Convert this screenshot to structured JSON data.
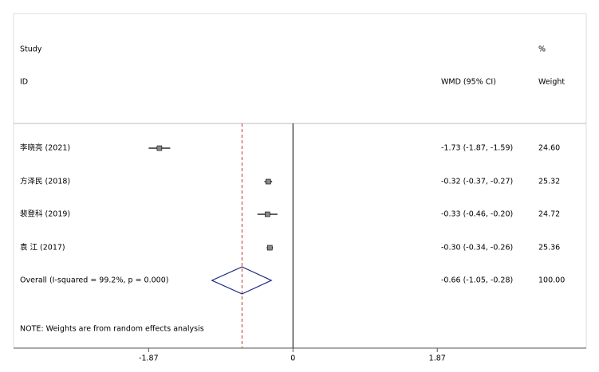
{
  "chart_data": {
    "type": "forest",
    "headers": {
      "study": "Study",
      "id": "ID",
      "effect": "WMD (95% CI)",
      "percent": "%",
      "weight": "Weight"
    },
    "studies": {
      "names": [
        "李晓亮 (2021)",
        "方泽民 (2018)",
        "裴登科 (2019)",
        "袁 江 (2017)"
      ],
      "values": [
        -1.73,
        -0.32,
        -0.33,
        -0.3
      ],
      "lower": [
        -1.87,
        -0.37,
        -0.46,
        -0.34
      ],
      "upper": [
        -1.59,
        -0.27,
        -0.2,
        -0.26
      ],
      "value_labels": [
        "-1.73 (-1.87, -1.59)",
        "-0.32 (-0.37, -0.27)",
        "-0.33 (-0.46, -0.20)",
        "-0.30 (-0.34, -0.26)"
      ],
      "weights": [
        {
          "value": 24.6,
          "label": "24.60"
        },
        {
          "value": 25.32,
          "label": "25.32"
        },
        {
          "value": 24.72,
          "label": "24.72"
        },
        {
          "value": 25.36,
          "label": "25.36"
        }
      ]
    },
    "overall": {
      "label": "Overall  (I-squared = 99.2%, p = 0.000)",
      "value": -0.66,
      "lower": -1.05,
      "upper": -0.28,
      "value_label": "-0.66 (-1.05, -0.28)",
      "weight": {
        "value": 100,
        "label": "100.00"
      }
    },
    "note": "NOTE: Weights are from random effects analysis",
    "xlim": [
      -3.62,
      3.8
    ],
    "xticks": [
      -1.87,
      0,
      1.87
    ],
    "diamond_color": "#1a237e",
    "overall_line_color": "#c0392b"
  }
}
